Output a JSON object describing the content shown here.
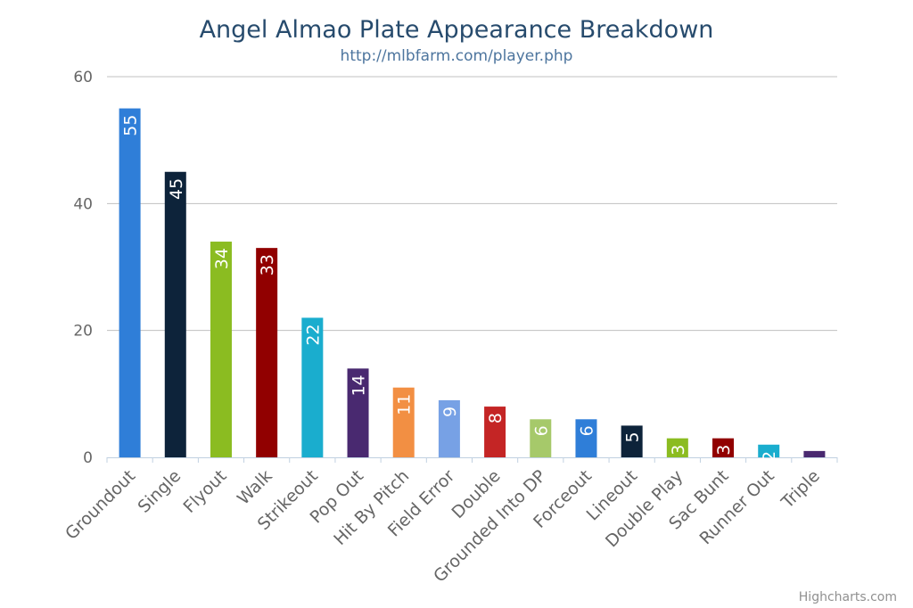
{
  "chart_data": {
    "type": "bar",
    "title": "Angel Almao Plate Appearance Breakdown",
    "subtitle": "http://mlbfarm.com/player.php",
    "categories": [
      "Groundout",
      "Single",
      "Flyout",
      "Walk",
      "Strikeout",
      "Pop Out",
      "Hit By Pitch",
      "Field Error",
      "Double",
      "Grounded Into DP",
      "Forceout",
      "Lineout",
      "Double Play",
      "Sac Bunt",
      "Runner Out",
      "Triple"
    ],
    "values": [
      55,
      45,
      34,
      33,
      22,
      14,
      11,
      9,
      8,
      6,
      6,
      5,
      3,
      3,
      2,
      1
    ],
    "colors": [
      "#2f7ed8",
      "#0d233a",
      "#8bbc21",
      "#910000",
      "#1aadce",
      "#492970",
      "#f28f43",
      "#77a1e5",
      "#c42525",
      "#a6c96a",
      "#2f7ed8",
      "#0d233a",
      "#8bbc21",
      "#910000",
      "#1aadce",
      "#492970"
    ],
    "ylim": [
      0,
      60
    ],
    "yticks": [
      0,
      20,
      40,
      60
    ],
    "grid": true,
    "data_labels": "inside-top-rotated",
    "credits": "Highcharts.com"
  }
}
